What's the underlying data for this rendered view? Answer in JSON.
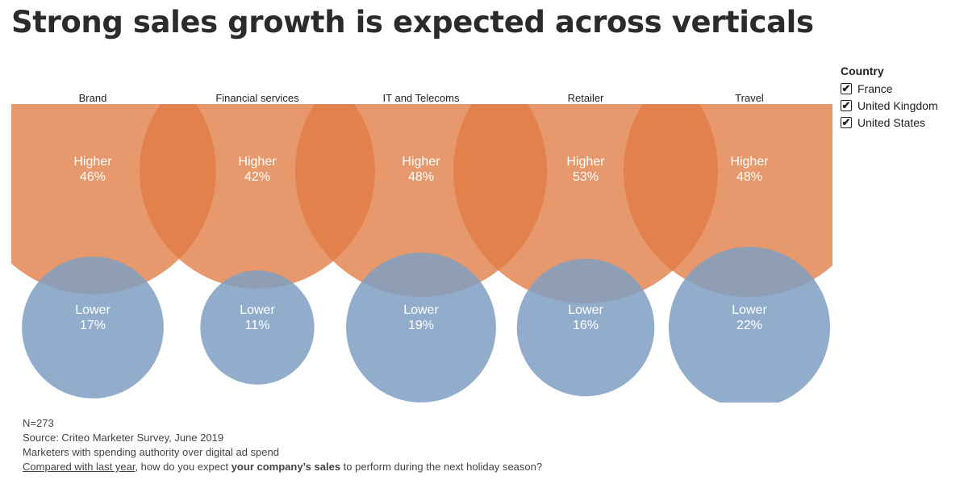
{
  "title": "Strong sales growth is expected across verticals",
  "legend": {
    "title": "Country",
    "items": [
      {
        "label": "France",
        "checked": true,
        "check": "✔"
      },
      {
        "label": "United Kingdom",
        "checked": true,
        "check": "✔"
      },
      {
        "label": "United States",
        "checked": true,
        "check": "✔"
      }
    ]
  },
  "chart_data": {
    "type": "bubble",
    "categories": [
      "Brand",
      "Financial services",
      "IT and Telecoms",
      "Retailer",
      "Travel"
    ],
    "series": [
      {
        "name": "Higher",
        "values": [
          46,
          42,
          48,
          53,
          48
        ],
        "labels": [
          "46%",
          "42%",
          "48%",
          "53%",
          "48%"
        ],
        "color": "#e07b42"
      },
      {
        "name": "Lower",
        "values": [
          17,
          11,
          19,
          16,
          22
        ],
        "labels": [
          "17%",
          "11%",
          "19%",
          "16%",
          "22%"
        ],
        "color": "#7f9fc2"
      }
    ]
  },
  "footer": {
    "n": "N=273",
    "source": "Source: Criteo Marketer Survey, June 2019",
    "audience": "Marketers with spending authority over digital ad spend",
    "question": {
      "underlined": "Compared with last year",
      "part1": ", how do you expect ",
      "bold": "your company’s sales",
      "part2": " to perform during the next holiday season?"
    }
  }
}
